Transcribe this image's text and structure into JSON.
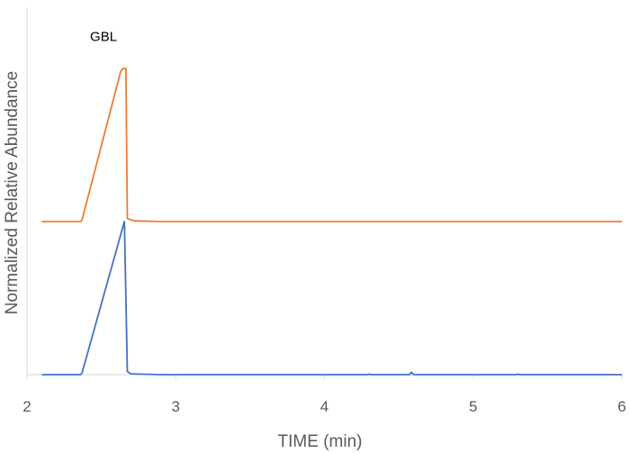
{
  "chart_data": {
    "type": "line",
    "xlabel": "TIME (min)",
    "ylabel": "Normalized Relative Abundance",
    "xlim": [
      2,
      6
    ],
    "ylim": [
      0,
      2.4
    ],
    "x_ticks": [
      "2",
      "3",
      "4",
      "5",
      "6"
    ],
    "grid": false,
    "legend": "none",
    "annotations": [
      {
        "text": "GBL",
        "x": 2.66,
        "y": 2.18
      }
    ],
    "series": [
      {
        "color": "#ED7D31",
        "points": [
          [
            2.1,
            1.0
          ],
          [
            2.36,
            1.0
          ],
          [
            2.37,
            1.01
          ],
          [
            2.63,
            1.98
          ],
          [
            2.645,
            2.0
          ],
          [
            2.665,
            2.0
          ],
          [
            2.675,
            1.02
          ],
          [
            2.72,
            1.005
          ],
          [
            2.9,
            1.0
          ],
          [
            6.0,
            1.0
          ]
        ]
      },
      {
        "color": "#4472C4",
        "points": [
          [
            2.1,
            0.0
          ],
          [
            2.36,
            0.0
          ],
          [
            2.37,
            0.01
          ],
          [
            2.655,
            1.0
          ],
          [
            2.675,
            0.02
          ],
          [
            2.7,
            0.005
          ],
          [
            2.9,
            0.0
          ],
          [
            4.29,
            0.0
          ],
          [
            4.3,
            0.004
          ],
          [
            4.31,
            0.0
          ],
          [
            4.57,
            0.0
          ],
          [
            4.585,
            0.015
          ],
          [
            4.6,
            0.0
          ],
          [
            5.29,
            0.0
          ],
          [
            5.3,
            0.004
          ],
          [
            5.31,
            0.0
          ],
          [
            6.0,
            0.0
          ]
        ]
      }
    ]
  }
}
